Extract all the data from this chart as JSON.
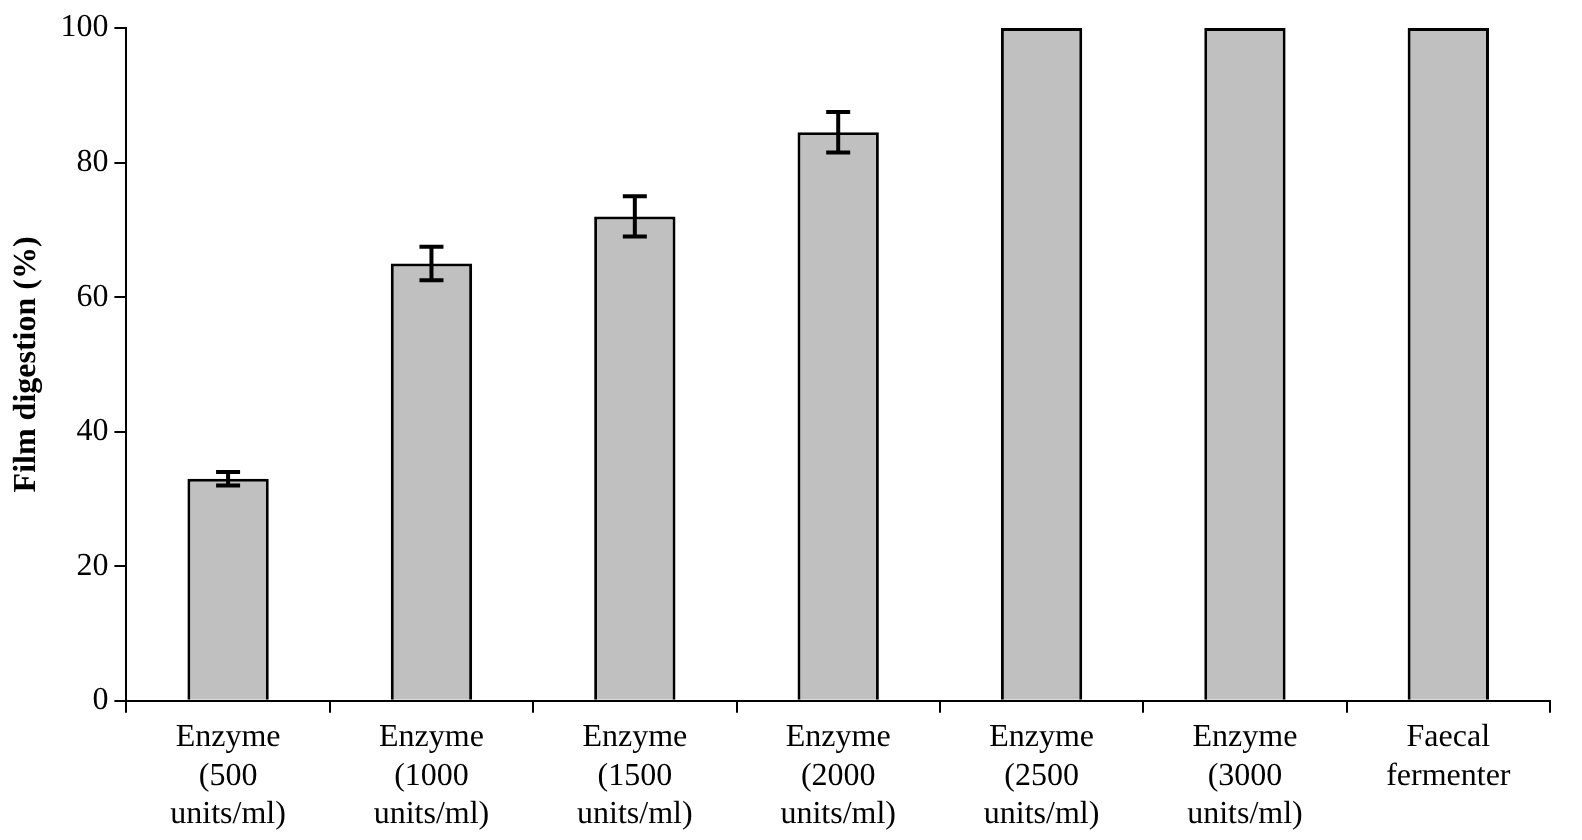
{
  "chart_data": {
    "type": "bar",
    "ylabel": "Film digestion (%)",
    "categories": [
      "Enzyme (500 units/ml)",
      "Enzyme (1000 units/ml)",
      "Enzyme (1500 units/ml)",
      "Enzyme (2000 units/ml)",
      "Enzyme (2500 units/ml)",
      "Enzyme (3000 units/ml)",
      "Faecal fermenter"
    ],
    "values": [
      33,
      65,
      72,
      84.5,
      100,
      100,
      100
    ],
    "errors": [
      1,
      2.5,
      3,
      3,
      null,
      null,
      null
    ],
    "color": "#c0c0c0",
    "ylim": [
      0,
      100
    ],
    "yticks": [
      0,
      20,
      40,
      60,
      80,
      100
    ],
    "grid": false,
    "legend": false
  }
}
